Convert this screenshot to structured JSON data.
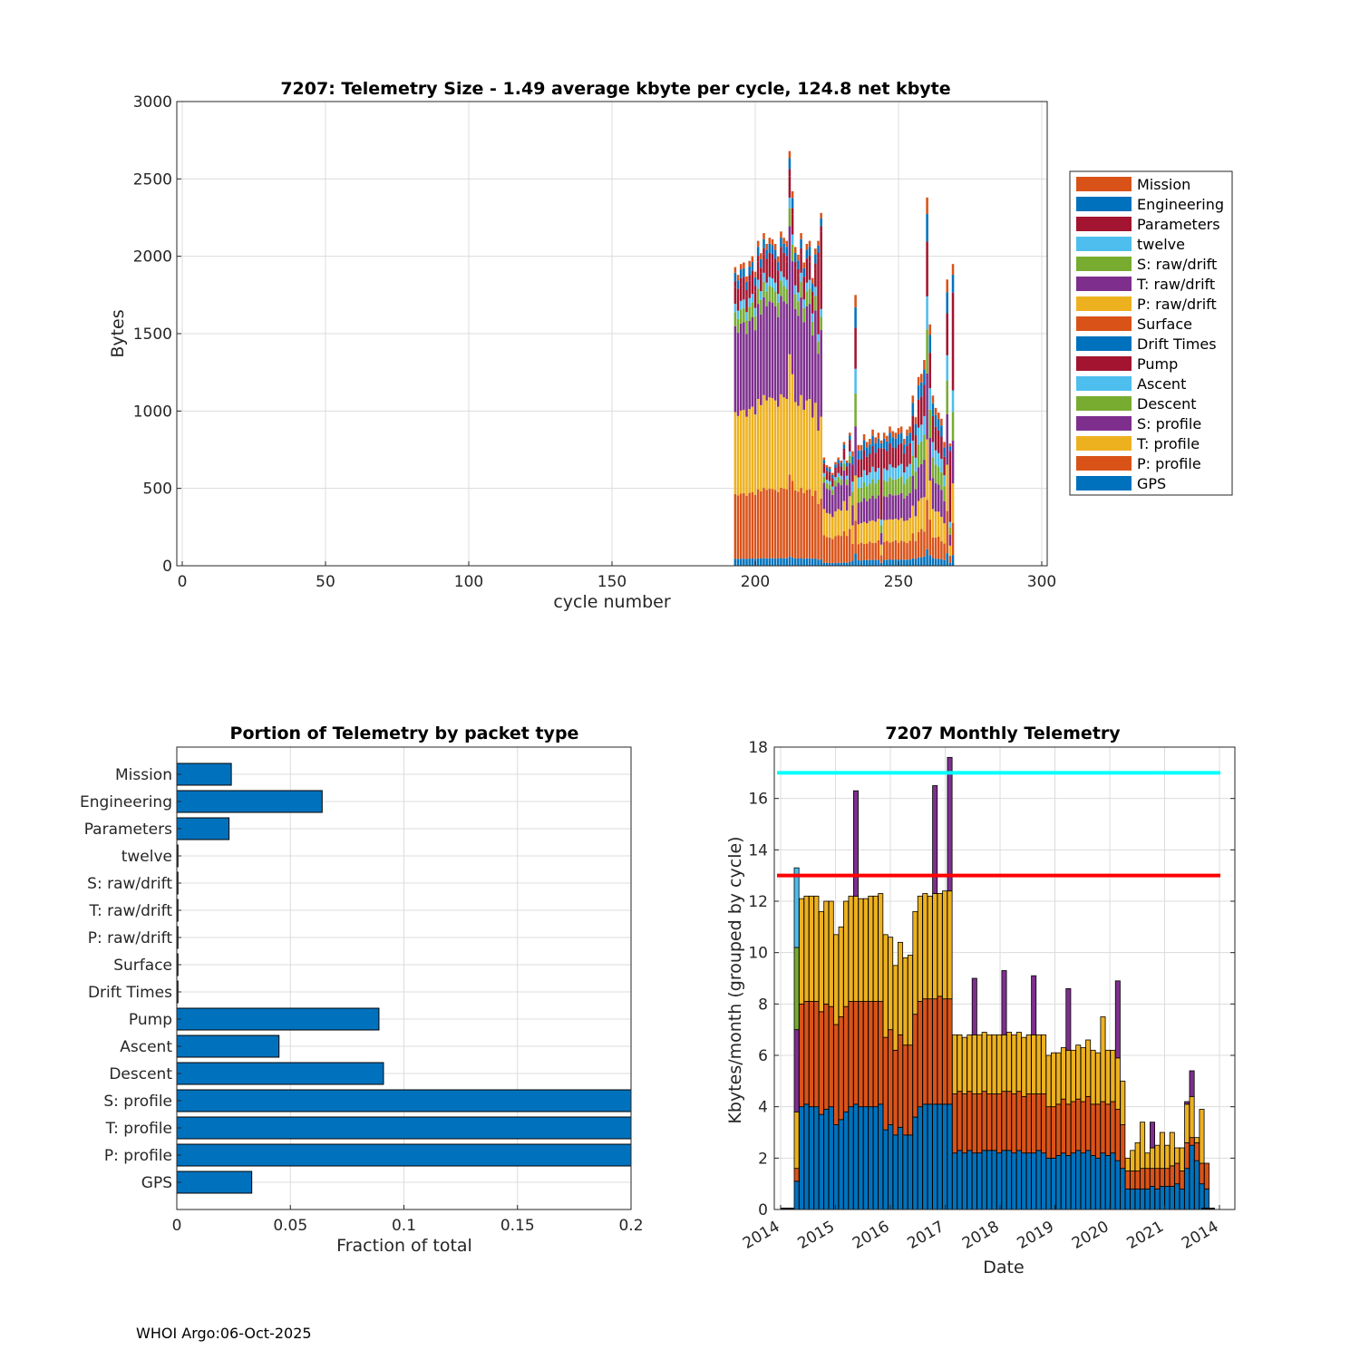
{
  "footer": "WHOI Argo:06-Oct-2025",
  "colors": {
    "blue": "#0072BD",
    "orange": "#D95319",
    "yellow": "#EDB120",
    "purple": "#7E2F8E",
    "green": "#77AC30",
    "cyan": "#4DBEEE",
    "red": "#A2142F",
    "hline_cyan": "#00FFFF",
    "hline_red": "#FF0000"
  },
  "chart_data": [
    {
      "id": "telemetry-size",
      "type": "bar",
      "stacked": true,
      "title": "7207: Telemetry Size - 1.49 average kbyte per cycle,  124.8 net kbyte",
      "xlabel": "cycle number",
      "ylabel": "Bytes",
      "xlim": [
        0,
        300
      ],
      "ylim": [
        0,
        3000
      ],
      "xticks": [
        0,
        50,
        100,
        150,
        200,
        250,
        300
      ],
      "yticks": [
        0,
        500,
        1000,
        1500,
        2000,
        2500,
        3000
      ],
      "grid": true,
      "legend_position": "outside-right",
      "legend": [
        {
          "name": "Mission",
          "color": "#D95319"
        },
        {
          "name": "Engineering",
          "color": "#0072BD"
        },
        {
          "name": "Parameters",
          "color": "#A2142F"
        },
        {
          "name": "twelve",
          "color": "#4DBEEE"
        },
        {
          "name": "S: raw/drift",
          "color": "#77AC30"
        },
        {
          "name": "T: raw/drift",
          "color": "#7E2F8E"
        },
        {
          "name": "P: raw/drift",
          "color": "#EDB120"
        },
        {
          "name": "Surface",
          "color": "#D95319"
        },
        {
          "name": "Drift Times",
          "color": "#0072BD"
        },
        {
          "name": "Pump",
          "color": "#A2142F"
        },
        {
          "name": "Ascent",
          "color": "#4DBEEE"
        },
        {
          "name": "Descent",
          "color": "#77AC30"
        },
        {
          "name": "S: profile",
          "color": "#7E2F8E"
        },
        {
          "name": "T: profile",
          "color": "#EDB120"
        },
        {
          "name": "P: profile",
          "color": "#D95319"
        },
        {
          "name": "GPS",
          "color": "#0072BD"
        }
      ],
      "stack_order": [
        "GPS",
        "P: profile",
        "T: profile",
        "S: profile",
        "Descent",
        "Ascent",
        "Pump",
        "Drift Times",
        "Surface",
        "P: raw/drift",
        "T: raw/drift",
        "S: raw/drift",
        "twelve",
        "Parameters",
        "Engineering",
        "Mission"
      ],
      "cycles_start": 193,
      "totals": [
        1930,
        1880,
        1950,
        1960,
        1870,
        1970,
        2000,
        1900,
        2100,
        2020,
        2150,
        2080,
        2120,
        2110,
        2080,
        2000,
        2160,
        2120,
        2100,
        2680,
        2420,
        2060,
        2010,
        2150,
        1960,
        2080,
        2100,
        1860,
        2050,
        2100,
        2280,
        700,
        650,
        640,
        600,
        670,
        700,
        680,
        800,
        680,
        860,
        740,
        1750,
        780,
        780,
        850,
        800,
        820,
        880,
        830,
        860,
        810,
        860,
        840,
        900,
        870,
        860,
        890,
        900,
        820,
        880,
        900,
        1100,
        960,
        1220,
        1240,
        1330,
        2380,
        1560,
        1100,
        1020,
        990,
        950,
        800,
        1850,
        790,
        1950
      ],
      "spikes": [
        [
          222,
          2680
        ],
        [
          223,
          2420
        ],
        [
          244,
          1750
        ],
        [
          268,
          2380
        ],
        [
          269,
          1560
        ],
        [
          276,
          1950
        ]
      ]
    },
    {
      "id": "portion-by-packet",
      "type": "barh",
      "title": "Portion of Telemetry by packet type",
      "xlabel": "Fraction of total",
      "xlim": [
        0,
        0.2
      ],
      "xticks": [
        0,
        0.05,
        0.1,
        0.15,
        0.2
      ],
      "xtick_labels": [
        "0",
        "0.05",
        "0.1",
        "0.15",
        "0.2"
      ],
      "grid": true,
      "categories": [
        "Mission",
        "Engineering",
        "Parameters",
        "twelve",
        "S: raw/drift",
        "T: raw/drift",
        "P: raw/drift",
        "Surface",
        "Drift Times",
        "Pump",
        "Ascent",
        "Descent",
        "S: profile",
        "T: profile",
        "P: profile",
        "GPS"
      ],
      "values": [
        0.024,
        0.064,
        0.023,
        0.0005,
        0.0005,
        0.0005,
        0.0005,
        0.0005,
        0.0005,
        0.089,
        0.045,
        0.091,
        0.21,
        0.21,
        0.21,
        0.033
      ]
    },
    {
      "id": "monthly-telemetry",
      "type": "bar",
      "stacked": true,
      "title": "7207 Monthly Telemetry",
      "xlabel": "Date",
      "ylabel": "Kbytes/month (grouped by cycle)",
      "ylim": [
        0,
        18
      ],
      "yticks": [
        0,
        2,
        4,
        6,
        8,
        10,
        12,
        14,
        16,
        18
      ],
      "xtick_labels": [
        "2014",
        "2015",
        "2016",
        "2017",
        "2018",
        "2019",
        "2020",
        "2021",
        "2014"
      ],
      "grid": true,
      "hlines": [
        {
          "y": 17,
          "color": "#00FFFF"
        },
        {
          "y": 13,
          "color": "#FF0000"
        }
      ],
      "segment_colors": [
        "#0072BD",
        "#D95319",
        "#EDB120",
        "#7E2F8E",
        "#77AC30",
        "#4DBEEE"
      ],
      "stacks": [
        [
          1.1,
          0.5,
          2.2,
          3.2,
          3.2,
          3.1
        ],
        [
          4.0,
          4.0,
          4.1,
          0,
          0,
          0
        ],
        [
          4.1,
          4.0,
          4.1,
          0,
          0,
          0
        ],
        [
          4.0,
          4.1,
          4.1,
          0,
          0,
          0
        ],
        [
          4.0,
          4.1,
          4.1,
          0,
          0,
          0
        ],
        [
          3.7,
          4.0,
          3.9,
          0,
          0,
          0
        ],
        [
          3.9,
          4.1,
          4.0,
          0,
          0,
          0
        ],
        [
          4.0,
          3.9,
          4.1,
          0,
          0,
          0
        ],
        [
          3.3,
          3.9,
          3.5,
          0,
          0,
          0
        ],
        [
          3.5,
          4.0,
          3.5,
          0,
          0,
          0
        ],
        [
          3.8,
          4.1,
          4.1,
          0,
          0,
          0
        ],
        [
          4.0,
          4.1,
          4.1,
          0,
          0,
          0
        ],
        [
          4.1,
          4.0,
          4.1,
          4.1,
          0,
          0
        ],
        [
          4.0,
          4.1,
          4.0,
          0,
          0,
          0
        ],
        [
          4.0,
          4.1,
          4.0,
          0,
          0,
          0
        ],
        [
          4.0,
          4.1,
          4.1,
          0,
          0,
          0
        ],
        [
          4.0,
          4.1,
          4.1,
          0,
          0,
          0
        ],
        [
          4.1,
          4.0,
          4.2,
          0,
          0,
          0
        ],
        [
          3.1,
          3.6,
          4.0,
          0,
          0,
          0
        ],
        [
          3.3,
          3.7,
          3.6,
          0,
          0,
          0
        ],
        [
          2.9,
          3.3,
          3.3,
          0,
          0,
          0
        ],
        [
          3.2,
          3.6,
          3.6,
          0,
          0,
          0
        ],
        [
          2.9,
          3.5,
          3.4,
          0,
          0,
          0
        ],
        [
          2.9,
          3.5,
          3.5,
          0,
          0,
          0
        ],
        [
          3.6,
          4.0,
          4.0,
          0,
          0,
          0
        ],
        [
          4.0,
          4.1,
          4.1,
          0,
          0,
          0
        ],
        [
          4.1,
          4.1,
          4.1,
          0,
          0,
          0
        ],
        [
          4.1,
          4.1,
          4.0,
          0,
          0,
          0
        ],
        [
          4.1,
          4.1,
          4.1,
          4.2,
          0,
          0
        ],
        [
          4.1,
          4.2,
          4.0,
          0,
          0,
          0
        ],
        [
          4.1,
          4.1,
          4.2,
          0,
          0,
          0
        ],
        [
          4.1,
          4.1,
          4.2,
          5.2,
          0,
          0
        ],
        [
          2.2,
          2.3,
          2.3,
          0,
          0,
          0
        ],
        [
          2.3,
          2.3,
          2.2,
          0,
          0,
          0
        ],
        [
          2.2,
          2.3,
          2.2,
          0,
          0,
          0
        ],
        [
          2.3,
          2.3,
          2.2,
          0,
          0,
          0
        ],
        [
          2.2,
          2.3,
          2.3,
          2.2,
          0,
          0
        ],
        [
          2.2,
          2.3,
          2.3,
          0,
          0,
          0
        ],
        [
          2.3,
          2.3,
          2.3,
          0,
          0,
          0
        ],
        [
          2.3,
          2.2,
          2.3,
          0,
          0,
          0
        ],
        [
          2.3,
          2.2,
          2.3,
          0,
          0,
          0
        ],
        [
          2.2,
          2.3,
          2.3,
          0,
          0,
          0
        ],
        [
          2.3,
          2.3,
          2.2,
          2.5,
          0,
          0
        ],
        [
          2.3,
          2.3,
          2.3,
          0,
          0,
          0
        ],
        [
          2.2,
          2.3,
          2.3,
          0,
          0,
          0
        ],
        [
          2.3,
          2.3,
          2.3,
          0,
          0,
          0
        ],
        [
          2.2,
          2.2,
          2.3,
          0,
          0,
          0
        ],
        [
          2.2,
          2.3,
          2.3,
          0,
          0,
          0
        ],
        [
          2.2,
          2.3,
          2.3,
          2.3,
          0,
          0
        ],
        [
          2.3,
          2.2,
          2.3,
          0,
          0,
          0
        ],
        [
          2.2,
          2.3,
          2.3,
          0,
          0,
          0
        ],
        [
          2.0,
          2.0,
          2.0,
          0,
          0,
          0
        ],
        [
          2.0,
          2.0,
          2.1,
          0,
          0,
          0
        ],
        [
          2.1,
          2.0,
          2.0,
          0,
          0,
          0
        ],
        [
          2.2,
          2.1,
          2.0,
          0,
          0,
          0
        ],
        [
          2.1,
          2.0,
          2.1,
          2.4,
          0,
          0
        ],
        [
          2.2,
          2.0,
          2.0,
          0,
          0,
          0
        ],
        [
          2.3,
          2.0,
          2.1,
          0,
          0,
          0
        ],
        [
          2.2,
          2.0,
          2.1,
          0,
          0,
          0
        ],
        [
          2.3,
          2.1,
          2.2,
          0,
          0,
          0
        ],
        [
          2.1,
          2.0,
          2.1,
          0,
          0,
          0
        ],
        [
          2.0,
          2.1,
          2.0,
          0,
          0,
          0
        ],
        [
          2.2,
          2.0,
          3.3,
          0,
          0,
          0
        ],
        [
          2.1,
          2.0,
          2.1,
          0,
          0,
          0
        ],
        [
          2.2,
          2.0,
          2.0,
          0,
          0,
          0
        ],
        [
          1.9,
          2.0,
          2.0,
          3.0,
          0,
          0
        ],
        [
          1.6,
          1.7,
          1.7,
          0,
          0,
          0
        ],
        [
          0.8,
          0.7,
          0.5,
          0,
          0,
          0
        ],
        [
          0.8,
          0.7,
          0.8,
          0,
          0,
          0
        ],
        [
          0.8,
          0.7,
          1.1,
          0,
          0,
          0
        ],
        [
          0.8,
          0.8,
          1.8,
          0,
          0,
          0
        ],
        [
          0.8,
          0.8,
          0.6,
          0,
          0,
          0
        ],
        [
          0.9,
          0.7,
          0.8,
          1.0,
          0,
          0
        ],
        [
          0.8,
          0.8,
          0.9,
          0,
          0,
          0
        ],
        [
          0.9,
          0.7,
          1.4,
          0,
          0,
          0
        ],
        [
          0.9,
          0.7,
          0.9,
          0,
          0,
          0
        ],
        [
          0.9,
          0.8,
          1.3,
          0,
          0,
          0
        ],
        [
          1.0,
          0.8,
          0.6,
          0,
          0,
          0
        ],
        [
          0.8,
          0.7,
          0.9,
          0,
          0,
          0
        ],
        [
          1.6,
          1.0,
          1.5,
          0.1,
          0,
          0
        ],
        [
          2.5,
          0.3,
          1.6,
          1.0,
          0,
          0
        ],
        [
          1.9,
          0.7,
          0.2,
          0,
          0,
          0
        ],
        [
          1.0,
          0.8,
          2.1,
          0,
          0,
          0
        ],
        [
          0.8,
          1.0,
          0,
          0,
          0,
          0
        ]
      ]
    }
  ]
}
